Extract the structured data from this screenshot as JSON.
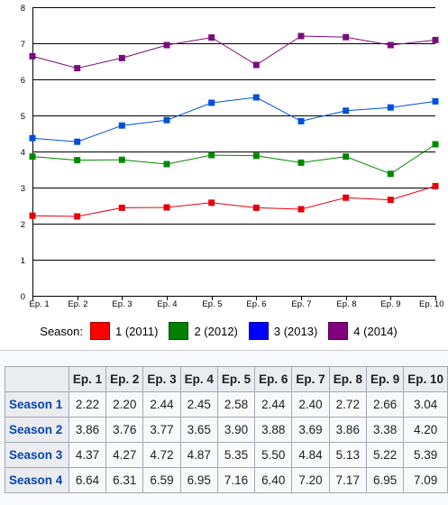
{
  "chart_data": {
    "type": "line",
    "categories": [
      "Ep. 1",
      "Ep. 2",
      "Ep. 3",
      "Ep. 4",
      "Ep. 5",
      "Ep. 6",
      "Ep. 7",
      "Ep. 8",
      "Ep. 9",
      "Ep. 10"
    ],
    "ylim": [
      0,
      8
    ],
    "yticks": [
      "0",
      "1",
      "2",
      "3",
      "4",
      "5",
      "6",
      "7",
      "8"
    ],
    "grid": true,
    "legend_position": "bottom",
    "legend_title": "Season:",
    "series": [
      {
        "name": "1 (2011)",
        "color": "#e8000b",
        "values": [
          2.22,
          2.2,
          2.44,
          2.45,
          2.58,
          2.44,
          2.4,
          2.72,
          2.66,
          3.04
        ]
      },
      {
        "name": "2 (2012)",
        "color": "#008a00",
        "values": [
          3.86,
          3.76,
          3.77,
          3.65,
          3.9,
          3.88,
          3.69,
          3.86,
          3.38,
          4.2
        ]
      },
      {
        "name": "3 (2013)",
        "color": "#0050d8",
        "values": [
          4.37,
          4.27,
          4.72,
          4.87,
          5.35,
          5.5,
          4.84,
          5.13,
          5.22,
          5.39
        ]
      },
      {
        "name": "4 (2014)",
        "color": "#7a0c7f",
        "values": [
          6.64,
          6.31,
          6.59,
          6.95,
          7.16,
          6.4,
          7.2,
          7.17,
          6.95,
          7.09
        ]
      }
    ]
  },
  "legend": {
    "title": "Season:",
    "items": [
      {
        "label": "1 (2011)",
        "color": "#ff0000"
      },
      {
        "label": "2 (2012)",
        "color": "#008000"
      },
      {
        "label": "3 (2013)",
        "color": "#0000ff"
      },
      {
        "label": "4 (2014)",
        "color": "#800080"
      }
    ]
  },
  "table": {
    "columns": [
      "Ep. 1",
      "Ep. 2",
      "Ep. 3",
      "Ep. 4",
      "Ep. 5",
      "Ep. 6",
      "Ep. 7",
      "Ep. 8",
      "Ep. 9",
      "Ep. 10"
    ],
    "rows": [
      {
        "label": "Season 1",
        "values": [
          "2.22",
          "2.20",
          "2.44",
          "2.45",
          "2.58",
          "2.44",
          "2.40",
          "2.72",
          "2.66",
          "3.04"
        ]
      },
      {
        "label": "Season 2",
        "values": [
          "3.86",
          "3.76",
          "3.77",
          "3.65",
          "3.90",
          "3.88",
          "3.69",
          "3.86",
          "3.38",
          "4.20"
        ]
      },
      {
        "label": "Season 3",
        "values": [
          "4.37",
          "4.27",
          "4.72",
          "4.87",
          "5.35",
          "5.50",
          "4.84",
          "5.13",
          "5.22",
          "5.39"
        ]
      },
      {
        "label": "Season 4",
        "values": [
          "6.64",
          "6.31",
          "6.59",
          "6.95",
          "7.16",
          "6.40",
          "7.20",
          "7.17",
          "6.95",
          "7.09"
        ]
      }
    ]
  }
}
